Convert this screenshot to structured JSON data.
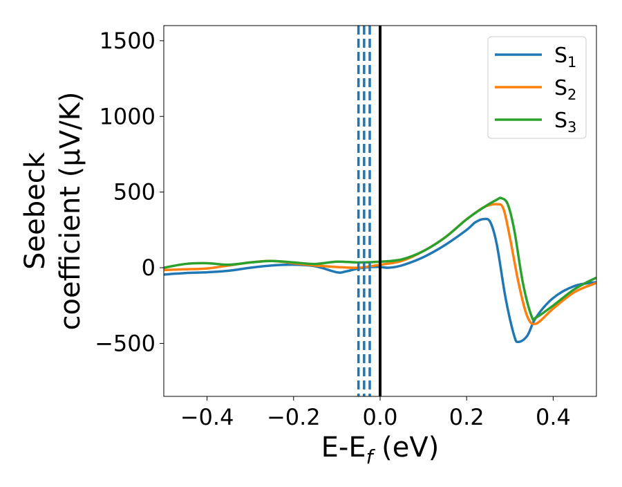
{
  "chart_data": {
    "type": "line",
    "xlabel": "E-E_f (eV)",
    "ylabel_line1": "Seebeck",
    "ylabel_line2": "coefficient  (μV/K)",
    "xlim": [
      -0.5,
      0.5
    ],
    "ylim": [
      -850,
      1600
    ],
    "x_ticks": [
      -0.4,
      -0.2,
      0.0,
      0.2,
      0.4
    ],
    "x_tick_labels": [
      "−0.4",
      "−0.2",
      "0.0",
      "0.2",
      "0.4"
    ],
    "y_ticks": [
      -500,
      0,
      500,
      1000,
      1500
    ],
    "y_tick_labels": [
      "−500",
      "0",
      "500",
      "1000",
      "1500"
    ],
    "grid": false,
    "legend_position": "top-right",
    "vertical_lines": [
      {
        "x": 0.0,
        "style": "solid",
        "color": "#000000"
      },
      {
        "x": -0.05,
        "style": "dashed",
        "color": "#1f77b4"
      },
      {
        "x": -0.037,
        "style": "dashed",
        "color": "#1f77b4"
      },
      {
        "x": -0.024,
        "style": "dashed",
        "color": "#1f77b4"
      }
    ],
    "series": [
      {
        "name": "S_1",
        "color": "#1f77b4",
        "x": [
          -0.5,
          -0.45,
          -0.4,
          -0.35,
          -0.3,
          -0.25,
          -0.2,
          -0.15,
          -0.1,
          -0.08,
          -0.05,
          -0.02,
          0.0,
          0.02,
          0.05,
          0.1,
          0.15,
          0.2,
          0.22,
          0.24,
          0.255,
          0.27,
          0.29,
          0.31,
          0.32,
          0.34,
          0.36,
          0.4,
          0.45,
          0.5
        ],
        "y": [
          -45,
          -35,
          -30,
          -20,
          0,
          15,
          20,
          10,
          -30,
          -25,
          -5,
          5,
          5,
          0,
          15,
          70,
          150,
          250,
          300,
          322,
          300,
          150,
          -200,
          -450,
          -490,
          -450,
          -330,
          -200,
          -120,
          -95
        ]
      },
      {
        "name": "S_2",
        "color": "#ff7f0e",
        "x": [
          -0.5,
          -0.45,
          -0.4,
          -0.35,
          -0.3,
          -0.25,
          -0.2,
          -0.15,
          -0.1,
          -0.05,
          0.0,
          0.05,
          0.1,
          0.15,
          0.2,
          0.24,
          0.27,
          0.285,
          0.3,
          0.32,
          0.34,
          0.36,
          0.4,
          0.45,
          0.5
        ],
        "y": [
          -15,
          -10,
          -5,
          15,
          35,
          45,
          30,
          15,
          5,
          0,
          20,
          45,
          110,
          200,
          320,
          400,
          420,
          390,
          200,
          -100,
          -320,
          -370,
          -270,
          -160,
          -100
        ]
      },
      {
        "name": "S_3",
        "color": "#2ca02c",
        "x": [
          -0.5,
          -0.45,
          -0.4,
          -0.35,
          -0.3,
          -0.25,
          -0.2,
          -0.15,
          -0.1,
          -0.05,
          0.0,
          0.05,
          0.1,
          0.15,
          0.2,
          0.24,
          0.27,
          0.28,
          0.295,
          0.31,
          0.33,
          0.35,
          0.36,
          0.4,
          0.45,
          0.5
        ],
        "y": [
          0,
          25,
          30,
          20,
          35,
          45,
          35,
          25,
          40,
          35,
          40,
          55,
          110,
          200,
          320,
          400,
          450,
          460,
          420,
          250,
          -100,
          -320,
          -330,
          -250,
          -140,
          -65
        ]
      }
    ],
    "legend": [
      {
        "base": "S",
        "sub": "1",
        "color": "#1f77b4"
      },
      {
        "base": "S",
        "sub": "2",
        "color": "#ff7f0e"
      },
      {
        "base": "S",
        "sub": "3",
        "color": "#2ca02c"
      }
    ]
  }
}
